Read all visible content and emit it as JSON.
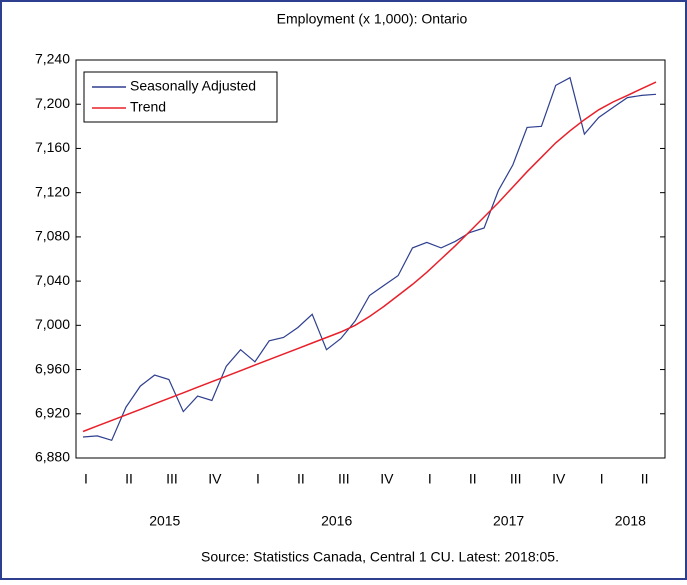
{
  "chart_data": {
    "type": "line",
    "title": "Employment (x 1,000): Ontario",
    "categories": [
      "I",
      null,
      null,
      "II",
      null,
      null,
      "III",
      null,
      null,
      "IV",
      null,
      null,
      "I",
      null,
      null,
      "II",
      null,
      null,
      "III",
      null,
      null,
      "IV",
      null,
      null,
      "I",
      null,
      null,
      "II",
      null,
      null,
      "III",
      null,
      null,
      "IV",
      null,
      null,
      "I",
      null,
      null,
      "II",
      null
    ],
    "years": [
      "2015",
      "2016",
      "2017",
      "2018"
    ],
    "series": [
      {
        "name": "Seasonally Adjusted",
        "color": "#2e3f8f",
        "values": [
          6899,
          6900,
          6896,
          6926,
          6945,
          6955,
          6951,
          6922,
          6936,
          6932,
          6963,
          6978,
          6967,
          6986,
          6989,
          6998,
          7010,
          6978,
          6988,
          7004,
          7027,
          7036,
          7045,
          7070,
          7075,
          7070,
          7076,
          7084,
          7088,
          7122,
          7145,
          7179,
          7180,
          7217,
          7224,
          7173,
          7188,
          7197,
          7206,
          7208,
          7209
        ]
      },
      {
        "name": "Trend",
        "color": "#e8202a",
        "values": [
          6904,
          6909,
          6914,
          6919,
          6924,
          6929,
          6934,
          6939,
          6944,
          6949,
          6954,
          6959,
          6964,
          6969,
          6974,
          6979,
          6984,
          6989,
          6994,
          7000,
          7008,
          7017,
          7027,
          7037,
          7048,
          7060,
          7072,
          7085,
          7098,
          7111,
          7125,
          7139,
          7152,
          7165,
          7176,
          7186,
          7195,
          7202,
          7208,
          7214,
          7220
        ]
      }
    ],
    "ylim": [
      6880,
      7240
    ],
    "yticks": [
      {
        "value": 6880,
        "label": "6,880"
      },
      {
        "value": 6920,
        "label": "6,920"
      },
      {
        "value": 6960,
        "label": "6,960"
      },
      {
        "value": 7000,
        "label": "7,000"
      },
      {
        "value": 7040,
        "label": "7,040"
      },
      {
        "value": 7080,
        "label": "7,080"
      },
      {
        "value": 7120,
        "label": "7,120"
      },
      {
        "value": 7160,
        "label": "7,160"
      },
      {
        "value": 7200,
        "label": "7,200"
      },
      {
        "value": 7240,
        "label": "7,240"
      }
    ],
    "legend": "upper left",
    "source": "Source: Statistics Canada, Central 1 CU. Latest: 2018:05."
  }
}
